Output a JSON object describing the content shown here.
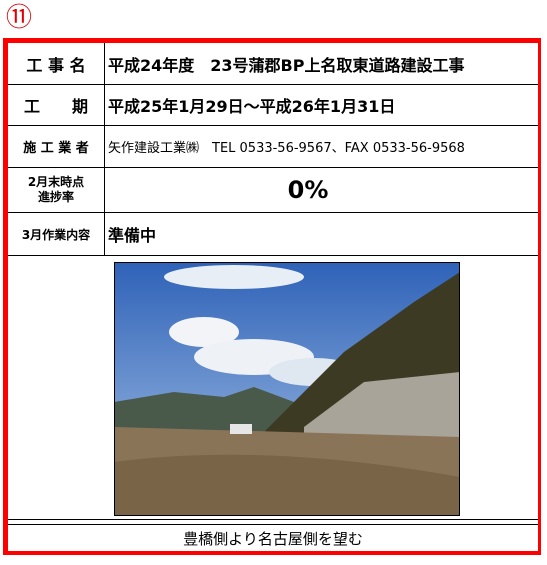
{
  "header": {
    "title": "⑪"
  },
  "table": {
    "rows": [
      [
        "工 事 名",
        "平成24年度　23号蒲郡BP上名取東道路建設工事"
      ],
      [
        "工　　期",
        "平成25年1月29日～平成26年1月31日"
      ],
      [
        "施 工 業 者",
        "矢作建設工業㈱　TEL 0533-56-9567、FAX 0533-56-9568"
      ],
      [
        [
          "2月末時点",
          "進捗率"
        ],
        "0%"
      ],
      [
        "3月作業内容",
        "準備中"
      ]
    ]
  },
  "photo": {
    "caption": "豊橋側より名古屋側を望む"
  }
}
